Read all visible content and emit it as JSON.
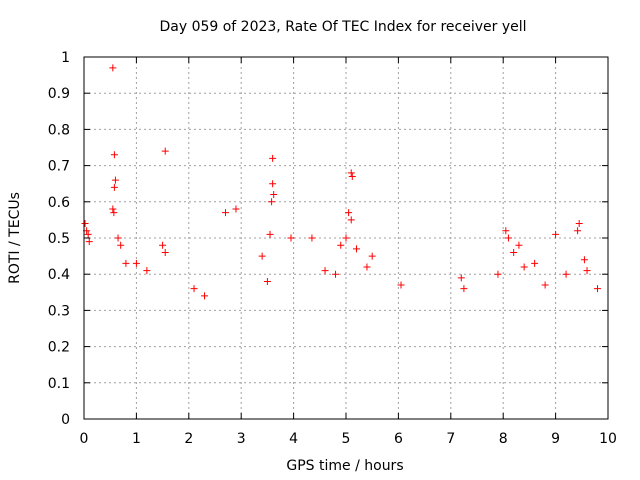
{
  "chart_data": {
    "type": "scatter",
    "title": "Day 059 of 2023, Rate Of TEC Index for receiver yell",
    "xlabel": "GPS time / hours",
    "ylabel": "ROTI / TECUs",
    "xlim": [
      0,
      10
    ],
    "ylim": [
      0,
      1
    ],
    "x_ticks": [
      "0",
      "1",
      "2",
      "3",
      "4",
      "5",
      "6",
      "7",
      "8",
      "9",
      "10"
    ],
    "y_ticks": [
      "0",
      "0.1",
      "0.2",
      "0.3",
      "0.4",
      "0.5",
      "0.6",
      "0.7",
      "0.8",
      "0.9",
      "1"
    ],
    "grid": true,
    "marker": "plus",
    "marker_color": "#ff0000",
    "series": [
      {
        "points": [
          [
            0.02,
            0.54
          ],
          [
            0.05,
            0.52
          ],
          [
            0.08,
            0.51
          ],
          [
            0.1,
            0.49
          ],
          [
            0.55,
            0.97
          ],
          [
            0.58,
            0.73
          ],
          [
            0.6,
            0.66
          ],
          [
            0.58,
            0.64
          ],
          [
            0.55,
            0.58
          ],
          [
            0.57,
            0.57
          ],
          [
            1.55,
            0.74
          ],
          [
            2.7,
            0.57
          ],
          [
            2.9,
            0.58
          ],
          [
            3.6,
            0.72
          ],
          [
            3.6,
            0.65
          ],
          [
            3.62,
            0.62
          ],
          [
            3.58,
            0.6
          ],
          [
            5.1,
            0.68
          ],
          [
            5.12,
            0.67
          ],
          [
            5.05,
            0.57
          ],
          [
            5.1,
            0.55
          ],
          [
            9.45,
            0.54
          ],
          [
            9.42,
            0.52
          ],
          [
            8.05,
            0.52
          ],
          [
            8.1,
            0.5
          ],
          [
            9.0,
            0.51
          ],
          [
            0.65,
            0.5
          ],
          [
            0.7,
            0.48
          ],
          [
            1.5,
            0.48
          ],
          [
            1.55,
            0.46
          ],
          [
            3.55,
            0.51
          ],
          [
            4.35,
            0.5
          ],
          [
            3.95,
            0.5
          ],
          [
            5.0,
            0.5
          ],
          [
            4.9,
            0.48
          ],
          [
            5.2,
            0.47
          ],
          [
            5.5,
            0.45
          ],
          [
            8.3,
            0.48
          ],
          [
            8.2,
            0.46
          ],
          [
            8.6,
            0.43
          ],
          [
            9.55,
            0.44
          ],
          [
            9.6,
            0.41
          ],
          [
            0.8,
            0.43
          ],
          [
            1.0,
            0.43
          ],
          [
            1.2,
            0.41
          ],
          [
            2.1,
            0.36
          ],
          [
            2.3,
            0.34
          ],
          [
            3.4,
            0.45
          ],
          [
            3.5,
            0.38
          ],
          [
            4.6,
            0.41
          ],
          [
            4.8,
            0.4
          ],
          [
            5.4,
            0.42
          ],
          [
            6.05,
            0.37
          ],
          [
            7.2,
            0.39
          ],
          [
            7.25,
            0.36
          ],
          [
            7.9,
            0.4
          ],
          [
            8.4,
            0.42
          ],
          [
            8.8,
            0.37
          ],
          [
            9.2,
            0.4
          ],
          [
            9.8,
            0.36
          ]
        ]
      }
    ]
  }
}
